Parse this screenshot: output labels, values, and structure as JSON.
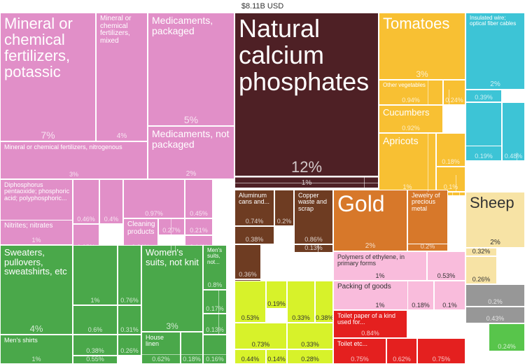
{
  "total_label": "$8.11B USD",
  "chart_data": {
    "type": "treemap",
    "title": "$8.11B USD",
    "items": [
      {
        "label": "Mineral or chemical fertilizers, potassic",
        "value_label": "7%",
        "value": 7,
        "color": "#e18fc8"
      },
      {
        "label": "Mineral or chemical fertilizers, mixed",
        "value_label": "4%",
        "value": 4,
        "color": "#e18fc8"
      },
      {
        "label": "Medicaments, packaged",
        "value_label": "5%",
        "value": 5,
        "color": "#e18fc8"
      },
      {
        "label": "Medicaments, not packaged",
        "value_label": "2%",
        "value": 2,
        "color": "#e18fc8"
      },
      {
        "label": "Mineral or chemical fertilizers, nitrogenous",
        "value_label": "3%",
        "value": 3,
        "color": "#e18fc8"
      },
      {
        "label": "Diphosphorus pentaoxide; phosphoric acid; polyphosphoric...",
        "value_label": "2%",
        "value": 2,
        "color": "#e18fc8"
      },
      {
        "label": "Nitrites; nitrates",
        "value_label": "1%",
        "value": 1,
        "color": "#e18fc8"
      },
      {
        "label": "",
        "value_label": "0.46%",
        "value": 0.46,
        "color": "#e18fc8"
      },
      {
        "label": "",
        "value_label": "0.4%",
        "value": 0.4,
        "color": "#e18fc8"
      },
      {
        "label": "",
        "value_label": "0.35%",
        "value": 0.35,
        "color": "#e18fc8"
      },
      {
        "label": "",
        "value_label": "0.23%",
        "value": 0.23,
        "color": "#e18fc8"
      },
      {
        "label": "",
        "value_label": "0.97%",
        "value": 0.97,
        "color": "#e18fc8"
      },
      {
        "label": "Cleaning products",
        "value_label": "0.86%",
        "value": 0.86,
        "color": "#e18fc8"
      },
      {
        "label": "",
        "value_label": "0.27%",
        "value": 0.27,
        "color": "#e18fc8"
      },
      {
        "label": "",
        "value_label": "0.45%",
        "value": 0.45,
        "color": "#e18fc8"
      },
      {
        "label": "",
        "value_label": "0.21%",
        "value": 0.21,
        "color": "#e18fc8"
      },
      {
        "label": "",
        "value_label": "0.14%",
        "value": 0.14,
        "color": "#e18fc8"
      },
      {
        "label": "Natural calcium phosphates",
        "value_label": "12%",
        "value": 12,
        "color": "#4e2025"
      },
      {
        "label": "",
        "value_label": "1%",
        "value": 1,
        "color": "#4e2025"
      },
      {
        "label": "Tomatoes",
        "value_label": "3%",
        "value": 3,
        "color": "#f8c033"
      },
      {
        "label": "Other vegetables",
        "value_label": "0.94%",
        "value": 0.94,
        "color": "#f8c033"
      },
      {
        "label": "",
        "value_label": "0.24%",
        "value": 0.24,
        "color": "#f8c033"
      },
      {
        "label": "Cucumbers",
        "value_label": "0.92%",
        "value": 0.92,
        "color": "#f8c033"
      },
      {
        "label": "Apricots",
        "value_label": "1%",
        "value": 1,
        "color": "#f8c033"
      },
      {
        "label": "",
        "value_label": "0.18%",
        "value": 0.18,
        "color": "#f8c033"
      },
      {
        "label": "",
        "value_label": "0.1%",
        "value": 0.1,
        "color": "#f8c033"
      },
      {
        "label": "",
        "value_label": "0.42%",
        "value": 0.42,
        "color": "#f8c033"
      },
      {
        "label": "Insulated wire; optical fiber cables",
        "value_label": "2%",
        "value": 2,
        "color": "#3dc4d6"
      },
      {
        "label": "",
        "value_label": "0.39%",
        "value": 0.39,
        "color": "#3dc4d6"
      },
      {
        "label": "",
        "value_label": "0.66%",
        "value": 0.66,
        "color": "#3dc4d6"
      },
      {
        "label": "",
        "value_label": "0.48%",
        "value": 0.48,
        "color": "#3dc4d6"
      },
      {
        "label": "",
        "value_label": "0.19%",
        "value": 0.19,
        "color": "#3dc4d6"
      },
      {
        "label": "Aluminum cans and...",
        "value_label": "0.74%",
        "value": 0.74,
        "color": "#6e3c22"
      },
      {
        "label": "",
        "value_label": "0.2%",
        "value": 0.2,
        "color": "#6e3c22"
      },
      {
        "label": "",
        "value_label": "0.38%",
        "value": 0.38,
        "color": "#6e3c22"
      },
      {
        "label": "Copper waste and scrap",
        "value_label": "0.86%",
        "value": 0.86,
        "color": "#6e3c22"
      },
      {
        "label": "",
        "value_label": "0.13%",
        "value": 0.13,
        "color": "#6e3c22"
      },
      {
        "label": "",
        "value_label": "0.36%",
        "value": 0.36,
        "color": "#6e3c22"
      },
      {
        "label": "",
        "value_label": "0.34%",
        "value": 0.34,
        "color": "#6e3c22"
      },
      {
        "label": "Gold",
        "value_label": "2%",
        "value": 2,
        "color": "#d7782a"
      },
      {
        "label": "Jewelry of precious metal",
        "value_label": "1%",
        "value": 1,
        "color": "#d7782a"
      },
      {
        "label": "",
        "value_label": "0.2%",
        "value": 0.2,
        "color": "#d7782a"
      },
      {
        "label": "Sheep",
        "value_label": "2%",
        "value": 2,
        "color": "#f7e3a5"
      },
      {
        "label": "",
        "value_label": "0.32%",
        "value": 0.32,
        "color": "#f7e3a5"
      },
      {
        "label": "",
        "value_label": "0.26%",
        "value": 0.26,
        "color": "#f7e3a5"
      },
      {
        "label": "Polymers of ethylene, in primary forms",
        "value_label": "1%",
        "value": 1,
        "color": "#f9bcdc"
      },
      {
        "label": "",
        "value_label": "0.53%",
        "value": 0.53,
        "color": "#f9bcdc"
      },
      {
        "label": "Packing of goods",
        "value_label": "1%",
        "value": 1,
        "color": "#f9bcdc"
      },
      {
        "label": "",
        "value_label": "0.18%",
        "value": 0.18,
        "color": "#f9bcdc"
      },
      {
        "label": "",
        "value_label": "0.1%",
        "value": 0.1,
        "color": "#f9bcdc"
      },
      {
        "label": "",
        "value_label": "0.2%",
        "value": 0.2,
        "color": "#979797"
      },
      {
        "label": "",
        "value_label": "0.43%",
        "value": 0.43,
        "color": "#979797"
      },
      {
        "label": "",
        "value_label": "0.24%",
        "value": 0.24,
        "color": "#58c54b"
      },
      {
        "label": "Sweaters, pullovers, sweatshirts, etc",
        "value_label": "4%",
        "value": 4,
        "color": "#4aa84a"
      },
      {
        "label": "",
        "value_label": "1%",
        "value": 1,
        "color": "#4aa84a"
      },
      {
        "label": "",
        "value_label": "0.76%",
        "value": 0.76,
        "color": "#4aa84a"
      },
      {
        "label": "",
        "value_label": "0.6%",
        "value": 0.6,
        "color": "#4aa84a"
      },
      {
        "label": "",
        "value_label": "0.31%",
        "value": 0.31,
        "color": "#4aa84a"
      },
      {
        "label": "",
        "value_label": "0.38%",
        "value": 0.38,
        "color": "#4aa84a"
      },
      {
        "label": "",
        "value_label": "0.26%",
        "value": 0.26,
        "color": "#4aa84a"
      },
      {
        "label": "Men's shirts",
        "value_label": "1%",
        "value": 1,
        "color": "#4aa84a"
      },
      {
        "label": "",
        "value_label": "0.55%",
        "value": 0.55,
        "color": "#4aa84a"
      },
      {
        "label": "Women's suits, not knit",
        "value_label": "3%",
        "value": 3,
        "color": "#4aa84a"
      },
      {
        "label": "Men's suits, not...",
        "value_label": "0.8%",
        "value": 0.8,
        "color": "#4aa84a"
      },
      {
        "label": "",
        "value_label": "0.17%",
        "value": 0.17,
        "color": "#4aa84a"
      },
      {
        "label": "",
        "value_label": "0.13%",
        "value": 0.13,
        "color": "#4aa84a"
      },
      {
        "label": "House linen",
        "value_label": "0.62%",
        "value": 0.62,
        "color": "#4aa84a"
      },
      {
        "label": "",
        "value_label": "0.18%",
        "value": 0.18,
        "color": "#4aa84a"
      },
      {
        "label": "",
        "value_label": "0.16%",
        "value": 0.16,
        "color": "#4aa84a"
      },
      {
        "label": "",
        "value_label": "0.19%",
        "value": 0.19,
        "color": "#d7f22a"
      },
      {
        "label": "",
        "value_label": "0.53%",
        "value": 0.53,
        "color": "#d7f22a"
      },
      {
        "label": "",
        "value_label": "0.33%",
        "value": 0.33,
        "color": "#d7f22a"
      },
      {
        "label": "",
        "value_label": "0.38%",
        "value": 0.38,
        "color": "#d7f22a"
      },
      {
        "label": "",
        "value_label": "0.73%",
        "value": 0.73,
        "color": "#d7f22a"
      },
      {
        "label": "",
        "value_label": "0.14%",
        "value": 0.14,
        "color": "#d7f22a"
      },
      {
        "label": "",
        "value_label": "0.33%",
        "value": 0.33,
        "color": "#d7f22a"
      },
      {
        "label": "",
        "value_label": "0.44%",
        "value": 0.44,
        "color": "#d7f22a"
      },
      {
        "label": "",
        "value_label": "0.28%",
        "value": 0.28,
        "color": "#d7f22a"
      },
      {
        "label": "Toilet paper of a kind used for...",
        "value_label": "0.84%",
        "value": 0.84,
        "color": "#e4201f"
      },
      {
        "label": "Toilet etc...",
        "value_label": "0.75%",
        "value": 0.75,
        "color": "#e4201f"
      },
      {
        "label": "",
        "value_label": "0.62%",
        "value": 0.62,
        "color": "#e4201f"
      },
      {
        "label": "",
        "value_label": "0.75%",
        "value": 0.75,
        "color": "#e4201f"
      }
    ]
  }
}
